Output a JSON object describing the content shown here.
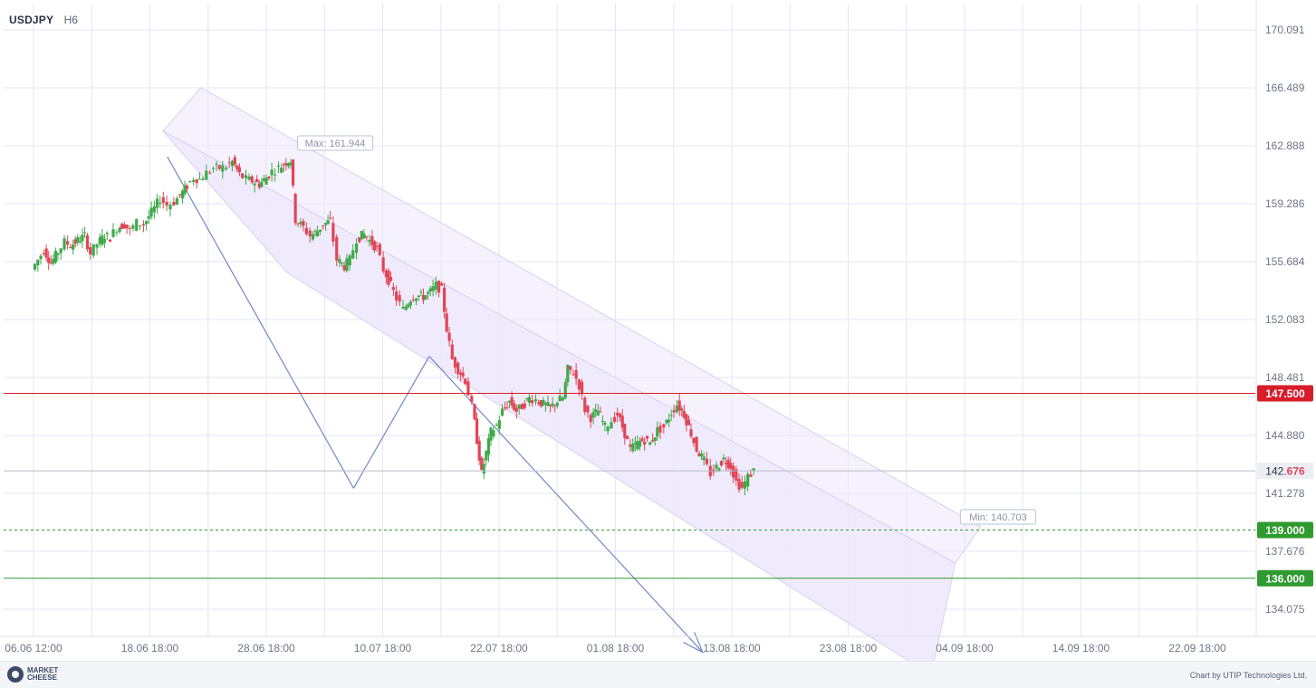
{
  "header": {
    "symbol": "USDJPY",
    "timeframe": "H6"
  },
  "footer": {
    "logo_line1": "MARKET",
    "logo_line2": "CHEESE",
    "credit": "Chart by UTIP Technologies Ltd."
  },
  "colors": {
    "up": "#3fa94a",
    "down": "#e04657",
    "grid": "#e3e6f5",
    "axis_text": "#6e7588",
    "channel_fill": "#ede7fb",
    "channel_border": "#d9d0f3",
    "trend_line": "#7189c4",
    "resistance": "#d71d2a",
    "support": "#2f9a2f",
    "price_line": "#b9bdca"
  },
  "chart_data": {
    "type": "candlestick",
    "symbol": "USDJPY",
    "timeframe": "H6",
    "xlabel": "",
    "ylabel": "",
    "ylim": [
      132.5,
      171.5
    ],
    "y_ticks": [
      "170.091",
      "166.489",
      "162.888",
      "159.286",
      "155.684",
      "152.083",
      "148.481",
      "144.880",
      "141.278",
      "137.676",
      "134.075"
    ],
    "x_ticks": [
      "06.06 12:00",
      "18.06 18:00",
      "28.06 18:00",
      "10.07 18:00",
      "22.07 18:00",
      "01.08 18:00",
      "13.08 18:00",
      "23.08 18:00",
      "04.09 18:00",
      "14.09 18:00",
      "22.09 18:00"
    ],
    "current_price": {
      "int": "142.",
      "dec": "676",
      "value": 142.676
    },
    "max_label": "Max: 161.944",
    "min_label": "Min: 140.703",
    "horizontal_levels": [
      {
        "value": 147.5,
        "label": "147.500",
        "color": "#d71d2a",
        "style": "solid"
      },
      {
        "value": 139.0,
        "label": "139.000",
        "color": "#2f9a2f",
        "style": "dotted"
      },
      {
        "value": 136.0,
        "label": "136.000",
        "color": "#2f9a2f",
        "style": "solid"
      }
    ],
    "channel": {
      "upper_start": [
        10.5,
        163.8
      ],
      "upper_end": [
        77.5,
        139.2
      ],
      "lower_start": [
        0,
        155.0
      ],
      "lower_end": [
        67.0,
        130.0
      ]
    },
    "wave_points": [
      [
        11.5,
        162.2
      ],
      [
        27.5,
        141.6
      ],
      [
        34.0,
        149.8
      ],
      [
        57.5,
        131.4
      ]
    ],
    "close_points": [
      [
        0,
        155.2
      ],
      [
        0.5,
        155.8
      ],
      [
        1.0,
        156.4
      ],
      [
        1.6,
        155.6
      ],
      [
        2.2,
        156.3
      ],
      [
        2.8,
        156.9
      ],
      [
        3.3,
        156.7
      ],
      [
        3.9,
        157.0
      ],
      [
        4.5,
        157.3
      ],
      [
        5.0,
        156.2
      ],
      [
        5.6,
        156.8
      ],
      [
        6.2,
        157.3
      ],
      [
        6.7,
        157.2
      ],
      [
        7.3,
        157.8
      ],
      [
        7.9,
        158.0
      ],
      [
        8.4,
        157.6
      ],
      [
        9.0,
        158.1
      ],
      [
        9.6,
        158.0
      ],
      [
        10.0,
        158.5
      ],
      [
        10.5,
        159.0
      ],
      [
        11.0,
        159.6
      ],
      [
        11.6,
        159.2
      ],
      [
        12.2,
        159.4
      ],
      [
        12.7,
        159.8
      ],
      [
        13.3,
        160.4
      ],
      [
        13.9,
        160.9
      ],
      [
        14.4,
        160.8
      ],
      [
        15.0,
        161.2
      ],
      [
        15.6,
        161.5
      ],
      [
        16.1,
        161.5
      ],
      [
        16.7,
        161.6
      ],
      [
        17.2,
        161.9
      ],
      [
        17.8,
        161.1
      ],
      [
        18.4,
        160.8
      ],
      [
        18.9,
        160.7
      ],
      [
        19.5,
        160.5
      ],
      [
        20.1,
        160.9
      ],
      [
        20.6,
        161.3
      ],
      [
        21.2,
        161.5
      ],
      [
        21.8,
        161.9
      ],
      [
        22.2,
        162.0
      ],
      [
        22.6,
        158.3
      ],
      [
        23.3,
        157.8
      ],
      [
        23.9,
        157.3
      ],
      [
        24.5,
        157.6
      ],
      [
        25.0,
        158.0
      ],
      [
        25.6,
        158.2
      ],
      [
        26.2,
        155.8
      ],
      [
        26.8,
        155.4
      ],
      [
        27.3,
        155.8
      ],
      [
        27.9,
        157.1
      ],
      [
        28.5,
        157.4
      ],
      [
        29.0,
        157.0
      ],
      [
        29.6,
        156.5
      ],
      [
        30.2,
        155.2
      ],
      [
        30.8,
        154.2
      ],
      [
        31.3,
        153.4
      ],
      [
        31.9,
        152.7
      ],
      [
        32.5,
        153.4
      ],
      [
        33.0,
        153.6
      ],
      [
        33.6,
        153.5
      ],
      [
        34.2,
        153.8
      ],
      [
        34.7,
        154.2
      ],
      [
        35.2,
        153.9
      ],
      [
        35.6,
        151.5
      ],
      [
        36.1,
        149.6
      ],
      [
        36.6,
        149.0
      ],
      [
        37.2,
        148.3
      ],
      [
        37.8,
        146.7
      ],
      [
        38.2,
        144.6
      ],
      [
        38.6,
        142.5
      ],
      [
        39.0,
        143.8
      ],
      [
        39.4,
        145.1
      ],
      [
        39.9,
        145.5
      ],
      [
        40.4,
        146.4
      ],
      [
        41.0,
        147.0
      ],
      [
        41.6,
        146.4
      ],
      [
        42.1,
        146.7
      ],
      [
        42.7,
        147.2
      ],
      [
        43.3,
        147.1
      ],
      [
        43.9,
        146.8
      ],
      [
        44.5,
        146.6
      ],
      [
        45.1,
        147.0
      ],
      [
        45.6,
        147.2
      ],
      [
        46.0,
        149.0
      ],
      [
        46.5,
        148.8
      ],
      [
        47.0,
        148.0
      ],
      [
        47.5,
        146.5
      ],
      [
        48.0,
        146.0
      ],
      [
        48.6,
        146.4
      ],
      [
        49.2,
        145.4
      ],
      [
        49.8,
        145.8
      ],
      [
        50.3,
        146.2
      ],
      [
        50.9,
        145.0
      ],
      [
        51.4,
        144.0
      ],
      [
        52.0,
        144.4
      ],
      [
        52.6,
        144.6
      ],
      [
        53.1,
        144.4
      ],
      [
        53.7,
        145.2
      ],
      [
        54.3,
        145.4
      ],
      [
        54.9,
        146.3
      ],
      [
        55.4,
        146.8
      ],
      [
        56.0,
        146.2
      ],
      [
        56.6,
        145.0
      ],
      [
        57.1,
        144.0
      ],
      [
        57.7,
        143.3
      ],
      [
        58.3,
        142.5
      ],
      [
        58.8,
        142.9
      ],
      [
        59.4,
        143.4
      ],
      [
        60.0,
        143.0
      ],
      [
        60.5,
        142.0
      ],
      [
        61.0,
        141.6
      ],
      [
        61.5,
        142.3
      ],
      [
        62.0,
        142.7
      ]
    ]
  }
}
